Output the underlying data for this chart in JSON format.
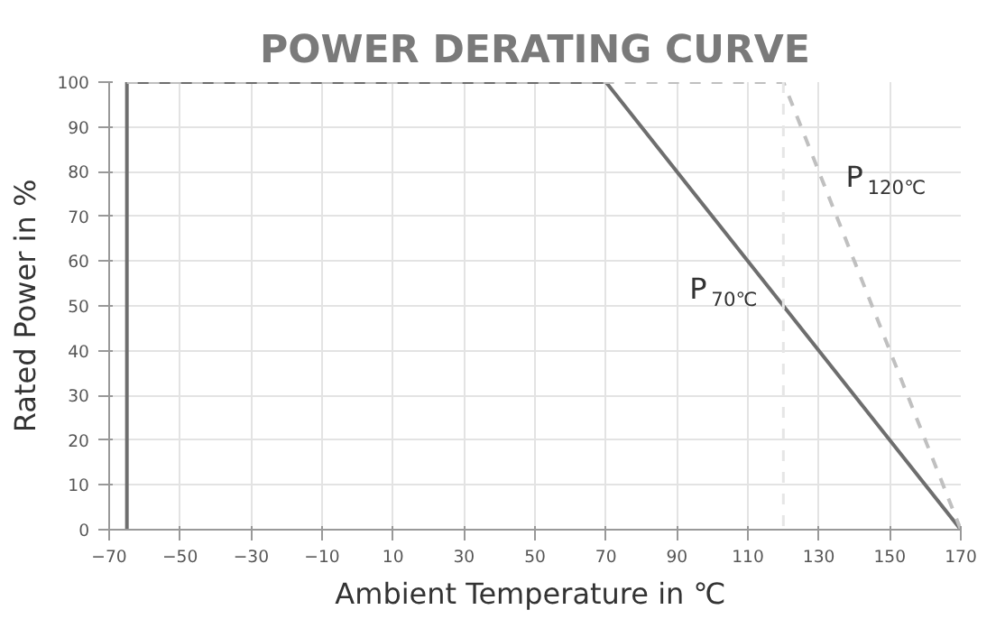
{
  "chart_data": {
    "type": "line",
    "title": "POWER DERATING CURVE",
    "xlabel": "Ambient Temperature  in ℃",
    "ylabel": "Rated Power in %",
    "xlim": [
      -70,
      170
    ],
    "xticks": [
      -70,
      -50,
      -30,
      -10,
      10,
      30,
      50,
      70,
      90,
      110,
      130,
      150,
      170
    ],
    "ylim": [
      0,
      100
    ],
    "yticks": [
      0,
      10,
      20,
      30,
      40,
      50,
      60,
      70,
      80,
      90,
      100
    ],
    "grid": true,
    "marker": "none",
    "series": [
      {
        "color": "#6e6e6e",
        "line_style": "solid",
        "x": [
          -65,
          -65,
          70,
          170
        ],
        "values": [
          0,
          100,
          100,
          0
        ]
      },
      {
        "color": "#c0c0c0",
        "line_style": "dashed",
        "x": [
          -65,
          120,
          170
        ],
        "values": [
          100,
          100,
          0
        ]
      }
    ],
    "ref_lines": [
      {
        "axis": "x",
        "value": 120,
        "color": "#e6e6e6",
        "line_style": "dashed"
      }
    ],
    "annotations": [
      "P$_{70℃}$",
      "P$_{120℃}$"
    ]
  }
}
